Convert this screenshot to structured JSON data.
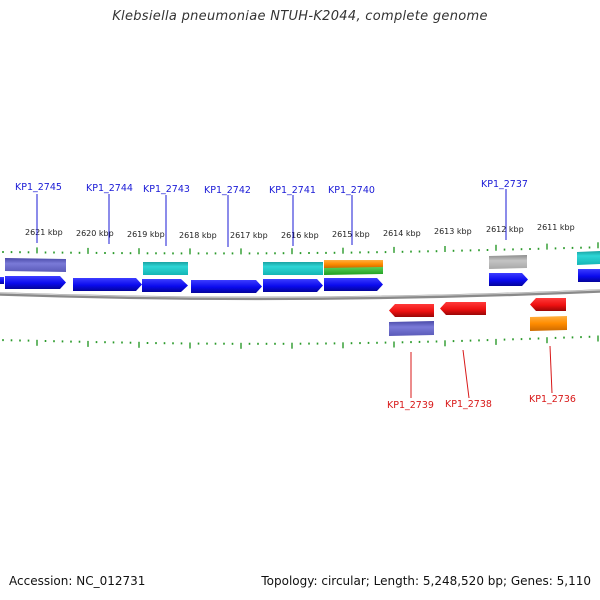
{
  "header": {
    "title": "Klebsiella pneumoniae NTUH-K2044, complete genome"
  },
  "footer": {
    "accession": "Accession: NC_012731",
    "summary": "Topology: circular; Length: 5,248,520 bp; Genes: 5,110"
  },
  "colors": {
    "forward_label": "#1a1ad6",
    "reverse_label": "#d81818",
    "cds_blue": "#0a0aee",
    "cds_red": "#ee1111",
    "tick_green": "#2a9a2a",
    "backbone": "#8a8a8a"
  },
  "scale_labels": [
    "2621 kbp",
    "2620 kbp",
    "2619 kbp",
    "2618 kbp",
    "2617 kbp",
    "2616 kbp",
    "2615 kbp",
    "2614 kbp",
    "2613 kbp",
    "2612 kbp",
    "2611 kbp"
  ],
  "forward_genes": [
    "KP1_2745",
    "KP1_2744",
    "KP1_2743",
    "KP1_2742",
    "KP1_2741",
    "KP1_2740",
    "KP1_2737"
  ],
  "reverse_genes": [
    "KP1_2739",
    "KP1_2738",
    "KP1_2736"
  ]
}
